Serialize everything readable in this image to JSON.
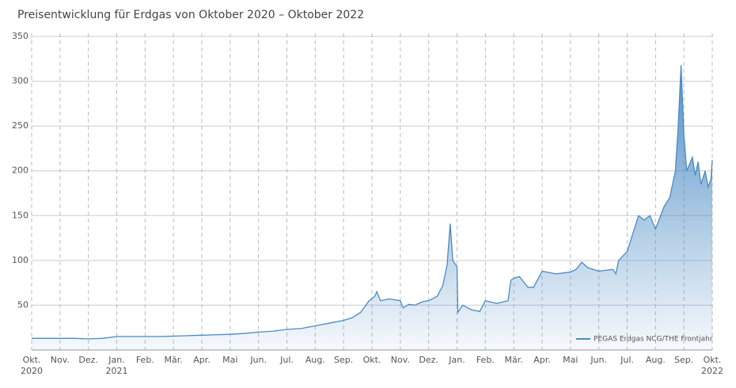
{
  "chart_data": {
    "type": "area",
    "title": "Preisentwicklung für Erdgas von Oktober 2020 – Oktober 2022",
    "xlim": [
      0,
      24
    ],
    "xticks": [
      {
        "value": 0,
        "label": "Okt.\n2020"
      },
      {
        "value": 1,
        "label": "Nov."
      },
      {
        "value": 2,
        "label": "Dez."
      },
      {
        "value": 3,
        "label": "Jan.\n2021"
      },
      {
        "value": 4,
        "label": "Feb."
      },
      {
        "value": 5,
        "label": "Mär."
      },
      {
        "value": 6,
        "label": "Apr."
      },
      {
        "value": 7,
        "label": "Mai"
      },
      {
        "value": 8,
        "label": "Jun."
      },
      {
        "value": 9,
        "label": "Jul."
      },
      {
        "value": 10,
        "label": "Aug."
      },
      {
        "value": 11,
        "label": "Sep."
      },
      {
        "value": 12,
        "label": "Okt."
      },
      {
        "value": 13,
        "label": "Nov."
      },
      {
        "value": 14,
        "label": "Dez."
      },
      {
        "value": 15,
        "label": "Jan."
      },
      {
        "value": 16,
        "label": "Feb."
      },
      {
        "value": 17,
        "label": "Mär."
      },
      {
        "value": 18,
        "label": "Apr."
      },
      {
        "value": 19,
        "label": "Mai"
      },
      {
        "value": 20,
        "label": "Jun."
      },
      {
        "value": 21,
        "label": "Jul."
      },
      {
        "value": 22,
        "label": "Aug."
      },
      {
        "value": 23,
        "label": "Sep."
      },
      {
        "value": 24,
        "label": "Okt.\n2022"
      }
    ],
    "ylim": [
      0,
      350
    ],
    "yticks": [
      50,
      100,
      150,
      200,
      250,
      300,
      350
    ],
    "grid": true,
    "legend": "lower right",
    "series": [
      {
        "name": "PEGAS Erdgas NCG/THE Frontjahr",
        "color": "#4a8ac4",
        "x": [
          0,
          0.5,
          1,
          1.5,
          2,
          2.5,
          3,
          3.5,
          4,
          4.5,
          5,
          5.5,
          6,
          6.5,
          7,
          7.5,
          8,
          8.5,
          9,
          9.5,
          10,
          10.5,
          11,
          11.3,
          11.6,
          11.9,
          12.1,
          12.17,
          12.3,
          12.6,
          13,
          13.1,
          13.3,
          13.5,
          13.8,
          14,
          14.3,
          14.5,
          14.65,
          14.76,
          14.85,
          15,
          15.03,
          15.2,
          15.5,
          15.8,
          16,
          16.4,
          16.8,
          16.9,
          17,
          17.2,
          17.5,
          17.7,
          18,
          18.5,
          19,
          19.2,
          19.4,
          19.6,
          20,
          20.5,
          20.6,
          20.7,
          21,
          21.2,
          21.4,
          21.6,
          21.8,
          22,
          22.3,
          22.5,
          22.7,
          22.8,
          22.9,
          23,
          23.1,
          23.3,
          23.4,
          23.5,
          23.6,
          23.75,
          23.85,
          23.95,
          24
        ],
        "values": [
          13,
          13,
          13,
          13,
          12.5,
          13,
          15,
          15,
          15,
          15,
          15.5,
          16,
          16.5,
          17,
          17.5,
          18.5,
          20,
          21,
          23,
          24,
          27,
          30,
          33,
          36,
          42,
          55,
          60,
          65,
          55,
          57,
          55,
          47,
          51,
          50,
          54,
          55,
          60,
          72,
          95,
          141,
          100,
          93,
          42,
          50,
          45,
          43,
          55,
          52,
          55,
          78,
          80,
          82,
          70,
          70,
          88,
          85,
          87,
          90,
          98,
          92,
          88,
          90,
          85,
          100,
          110,
          130,
          150,
          145,
          150,
          135,
          160,
          170,
          200,
          250,
          318,
          240,
          200,
          215,
          195,
          210,
          185,
          200,
          182,
          190,
          212
        ]
      }
    ]
  }
}
